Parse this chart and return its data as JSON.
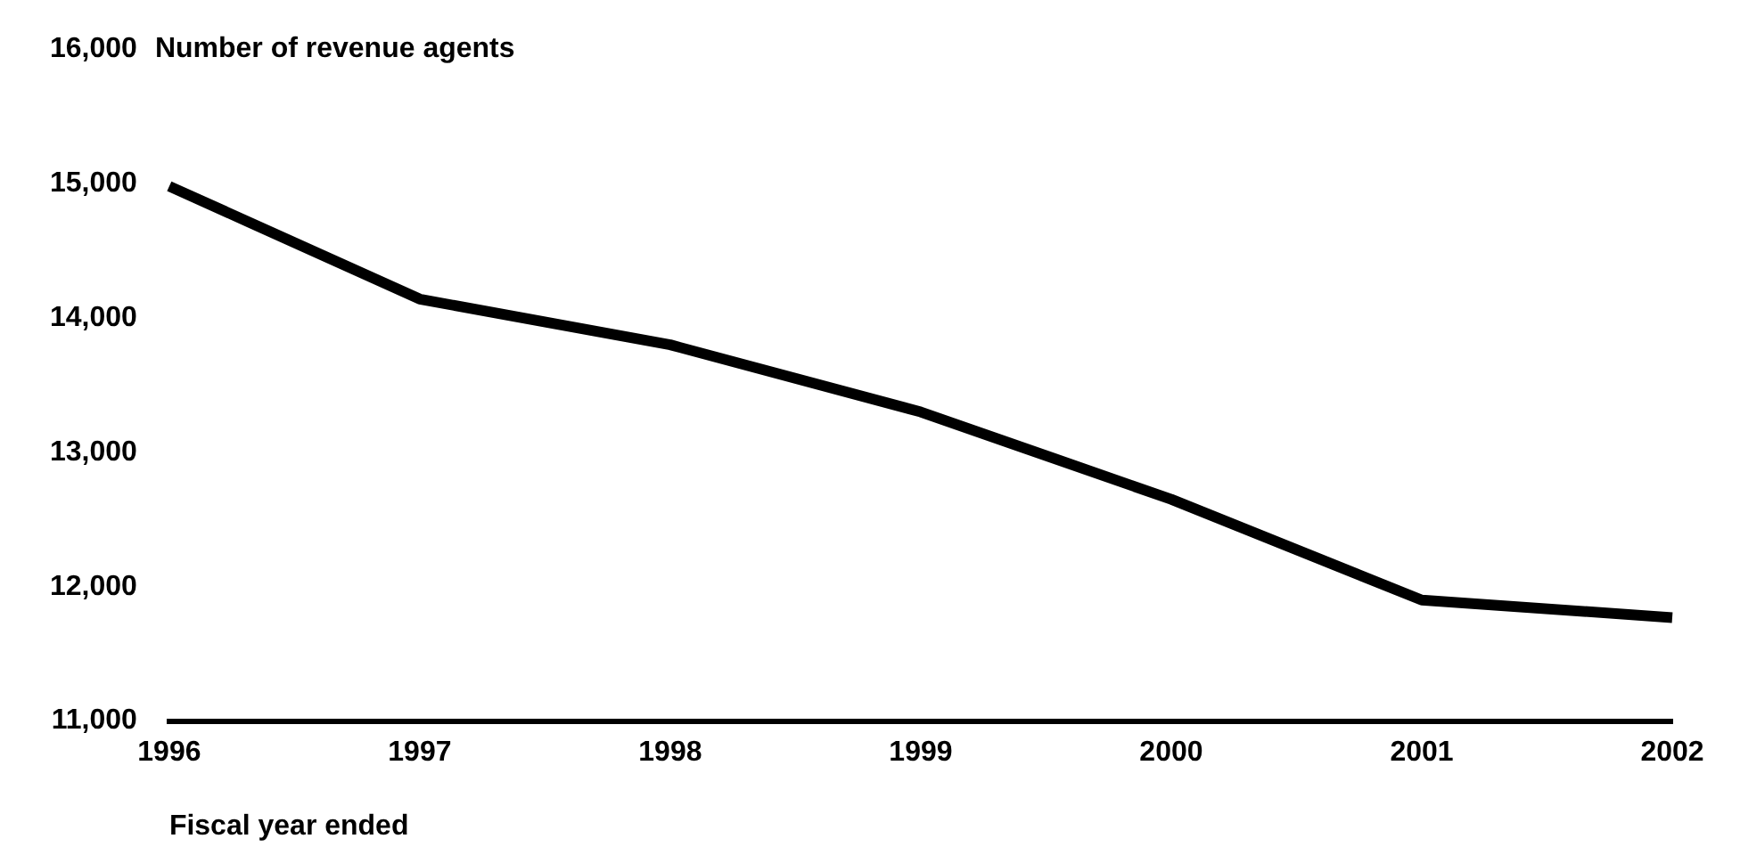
{
  "chart_data": {
    "type": "line",
    "ylabel": "Number of revenue agents",
    "xlabel": "Fiscal year ended",
    "categories": [
      "1996",
      "1997",
      "1998",
      "1999",
      "2000",
      "2001",
      "2002"
    ],
    "series": [
      {
        "color": "#000000",
        "values": [
          14980,
          14140,
          13800,
          13300,
          12650,
          11900,
          11770
        ]
      }
    ],
    "ylim": [
      11000,
      16000
    ],
    "yticks": [
      {
        "value": 11000,
        "label": "11,000"
      },
      {
        "value": 12000,
        "label": "12,000"
      },
      {
        "value": 13000,
        "label": "13,000"
      },
      {
        "value": 14000,
        "label": "14,000"
      },
      {
        "value": 15000,
        "label": "15,000"
      },
      {
        "value": 16000,
        "label": "16,000"
      }
    ],
    "grid": false,
    "legend": false,
    "marker": "none",
    "line_style": "solid"
  }
}
